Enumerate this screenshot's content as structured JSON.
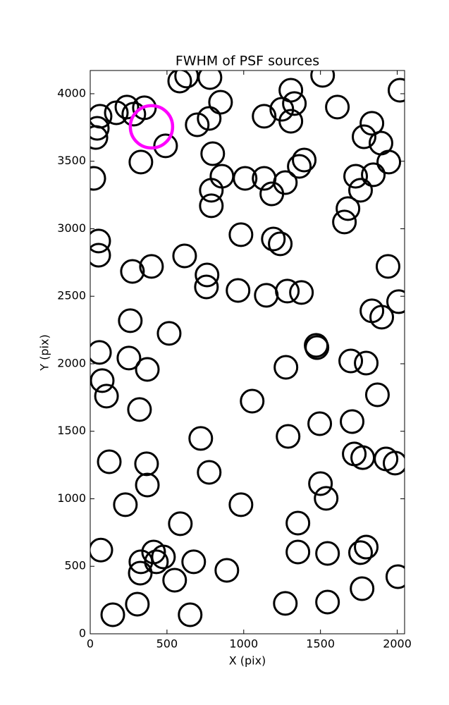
{
  "chart_data": {
    "type": "scatter",
    "title": "FWHM of PSF sources",
    "x_label": "X (pix)",
    "y_label": "Y (pix)",
    "xlim": [
      0,
      2048
    ],
    "ylim": [
      0,
      4172
    ],
    "xticks": [
      0,
      500,
      1000,
      1500,
      2000
    ],
    "yticks": [
      0,
      500,
      1000,
      1500,
      2000,
      2500,
      3000,
      3500,
      4000
    ],
    "series": [
      {
        "color": "#000000",
        "x": [
          64,
          46,
          37,
          170,
          239,
          353,
          284,
          330,
          23,
          491,
          583,
          628,
          697,
          775,
          780,
          849,
          798,
          858,
          789,
          789,
          1009,
          1133,
          1133,
          1183,
          1248,
          1307,
          1307,
          1330,
          1271,
          1362,
          1394,
          1514,
          1610,
          1784,
          1894,
          1945,
          1835,
          2018,
          1729,
          1844,
          1761,
          1679,
          1656,
          55,
          55,
          275,
          399,
          615,
          761,
          757,
          982,
          963,
          1193,
          1238,
          1147,
          1284,
          1376,
          1940,
          1835,
          1899,
          2009,
          261,
          514,
          60,
          252,
          372,
          78,
          106,
          321,
          1055,
          1275,
          1472,
          1477,
          1697,
          1798,
          1871,
          1495,
          1706,
          1289,
          720,
          1720,
          1775,
          1927,
          1986,
          124,
          367,
          372,
          775,
          1500,
          1537,
          229,
          982,
          587,
          1353,
          69,
          413,
          477,
          431,
          330,
          326,
          674,
          550,
          890,
          1353,
          1546,
          1761,
          1798,
          2004,
          307,
          651,
          147,
          1271,
          1546,
          1771
        ],
        "y": [
          3833,
          3744,
          3676,
          3859,
          3901,
          3896,
          3849,
          3494,
          3373,
          3614,
          4094,
          4131,
          3770,
          3817,
          4120,
          3937,
          3556,
          3389,
          3285,
          3170,
          3373,
          3833,
          3373,
          3258,
          3885,
          4026,
          3796,
          3927,
          3342,
          3462,
          3509,
          4136,
          3901,
          3681,
          3634,
          3494,
          3781,
          4026,
          3389,
          3400,
          3285,
          3149,
          3050,
          2909,
          2804,
          2684,
          2721,
          2799,
          2658,
          2569,
          2956,
          2543,
          2924,
          2888,
          2507,
          2538,
          2528,
          2721,
          2392,
          2345,
          2460,
          2319,
          2225,
          2084,
          2042,
          1958,
          1875,
          1760,
          1661,
          1723,
          1974,
          2136,
          2120,
          2021,
          2005,
          1770,
          1556,
          1572,
          1462,
          1447,
          1332,
          1305,
          1295,
          1264,
          1274,
          1259,
          1102,
          1196,
          1112,
          1003,
          956,
          956,
          815,
          820,
          620,
          606,
          569,
          533,
          533,
          449,
          533,
          397,
          470,
          606,
          595,
          601,
          642,
          423,
          219,
          141,
          141,
          225,
          235,
          334
        ]
      },
      {
        "color": "#ff00ff",
        "x": [
          399
        ],
        "y": [
          3755
        ]
      }
    ]
  }
}
